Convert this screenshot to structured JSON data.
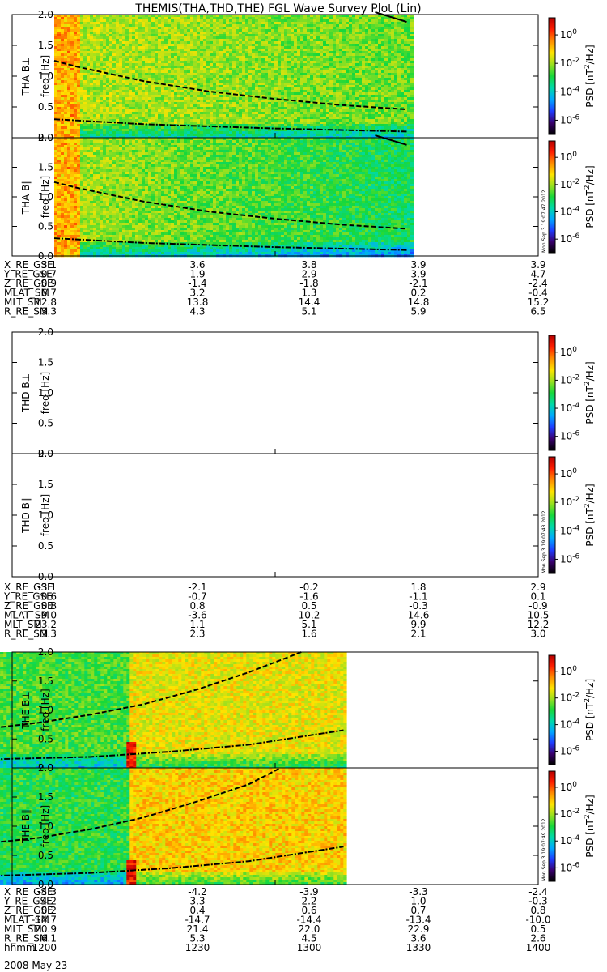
{
  "chart_data": {
    "type": "heatmap",
    "title": "THEMIS(THA,THD,THE) FGL Wave Survey Plot (Lin)",
    "date": "2008 May 23",
    "colorbar": {
      "label": "PSD [nT²/Hz]",
      "label_base": "PSD [nT",
      "label_sup": "2",
      "label_tail": "/Hz]",
      "scale": "log",
      "ticks": [
        {
          "base": "10",
          "exp": "0",
          "value": 1
        },
        {
          "base": "10",
          "exp": "-2",
          "value": 0.01
        },
        {
          "base": "10",
          "exp": "-4",
          "value": 0.0001
        },
        {
          "base": "10",
          "exp": "-6",
          "value": 1e-06
        }
      ],
      "colors": [
        "#000000",
        "#3a006f",
        "#1f3cff",
        "#00a8ff",
        "#00d9a8",
        "#17d83a",
        "#9be01f",
        "#ffe400",
        "#ff8c00",
        "#ff1d00",
        "#b50000"
      ]
    },
    "stamps": {
      "tha": "Mon Sep  3 19:07:47 2012",
      "thd": "Mon Sep  3 19:07:48 2012",
      "the": "Mon Sep  3 19:07:49 2012"
    },
    "yaxis": {
      "label": "freq [Hz]",
      "ylim": [
        0,
        2.0
      ],
      "ticks": [
        "0.0",
        "0.5",
        "1.0",
        "1.5",
        "2.0"
      ]
    },
    "panels": [
      {
        "id": "tha_perp",
        "probe": "THA",
        "component": "B⊥",
        "ylabel": "THA B⊥",
        "data_start": 1216,
        "data_end": 1352,
        "bright_band": [
          1216,
          1225
        ],
        "level_early": 6.3,
        "level_late": 5.6,
        "level_jump": null,
        "upper_curve": [
          [
            1216,
            1.25
          ],
          [
            1225,
            1.15
          ],
          [
            1250,
            0.92
          ],
          [
            1275,
            0.75
          ],
          [
            1300,
            0.63
          ],
          [
            1325,
            0.53
          ],
          [
            1350,
            0.46
          ]
        ],
        "lower_curve": [
          [
            1216,
            0.3
          ],
          [
            1250,
            0.22
          ],
          [
            1300,
            0.15
          ],
          [
            1350,
            0.1
          ]
        ],
        "top_curve": [
          [
            1338,
            2.04
          ],
          [
            1350,
            1.88
          ]
        ]
      },
      {
        "id": "tha_par",
        "probe": "THA",
        "component": "B∥",
        "ylabel": "THA B∥",
        "data_start": 1216,
        "data_end": 1352,
        "bright_band": [
          1216,
          1225
        ],
        "level_early": 6.2,
        "level_late": 4.7,
        "level_jump": null,
        "upper_curve": [
          [
            1216,
            1.25
          ],
          [
            1225,
            1.15
          ],
          [
            1250,
            0.92
          ],
          [
            1275,
            0.75
          ],
          [
            1300,
            0.63
          ],
          [
            1325,
            0.53
          ],
          [
            1350,
            0.46
          ]
        ],
        "lower_curve": [
          [
            1216,
            0.3
          ],
          [
            1250,
            0.22
          ],
          [
            1300,
            0.15
          ],
          [
            1350,
            0.1
          ]
        ],
        "top_curve": [
          [
            1338,
            2.04
          ],
          [
            1350,
            1.88
          ]
        ]
      },
      {
        "id": "thd_perp",
        "probe": "THD",
        "component": "B⊥",
        "ylabel": "THD B⊥",
        "data_start": null,
        "data_end": null,
        "bright_band": null,
        "level_early": null,
        "level_late": null,
        "level_jump": null,
        "upper_curve": [],
        "lower_curve": [],
        "top_curve": []
      },
      {
        "id": "thd_par",
        "probe": "THD",
        "component": "B∥",
        "ylabel": "THD B∥",
        "data_start": null,
        "data_end": null,
        "bright_band": null,
        "level_early": null,
        "level_late": null,
        "level_jump": null,
        "upper_curve": [],
        "lower_curve": [],
        "top_curve": []
      },
      {
        "id": "the_perp",
        "probe": "THE",
        "component": "B⊥",
        "ylabel": "THE B⊥",
        "data_start": 1193,
        "data_end": 1326,
        "bright_band": null,
        "level_early": 5.3,
        "level_late": 6.8,
        "level_jump": 1244,
        "upper_curve": [
          [
            1193,
            0.69
          ],
          [
            1210,
            0.78
          ],
          [
            1230,
            0.92
          ],
          [
            1250,
            1.1
          ],
          [
            1270,
            1.35
          ],
          [
            1290,
            1.65
          ],
          [
            1310,
            2.0
          ]
        ],
        "lower_curve": [
          [
            1193,
            0.15
          ],
          [
            1230,
            0.19
          ],
          [
            1260,
            0.28
          ],
          [
            1290,
            0.4
          ],
          [
            1326,
            0.65
          ]
        ],
        "top_curve": []
      },
      {
        "id": "the_par",
        "probe": "THE",
        "component": "B∥",
        "ylabel": "THE B∥",
        "data_start": 1193,
        "data_end": 1326,
        "bright_band": null,
        "level_early": 5.0,
        "level_late": 7.2,
        "level_jump": 1244,
        "upper_curve": [
          [
            1193,
            0.72
          ],
          [
            1210,
            0.8
          ],
          [
            1230,
            0.95
          ],
          [
            1250,
            1.15
          ],
          [
            1270,
            1.42
          ],
          [
            1290,
            1.72
          ],
          [
            1302,
            2.0
          ]
        ],
        "lower_curve": [
          [
            1193,
            0.15
          ],
          [
            1230,
            0.2
          ],
          [
            1260,
            0.28
          ],
          [
            1290,
            0.4
          ],
          [
            1326,
            0.65
          ]
        ],
        "top_curve": []
      }
    ],
    "ephemeris": [
      {
        "probe": "THA",
        "rows": [
          {
            "name": "X_RE_GSE",
            "values": [
              "3.1",
              "3.6",
              "3.8",
              "3.9",
              "3.9"
            ]
          },
          {
            "name": "Y_RE_GSE",
            "values": [
              "0.7",
              "1.9",
              "2.9",
              "3.9",
              "4.7"
            ]
          },
          {
            "name": "Z_RE_GSE",
            "values": [
              "-0.9",
              "-1.4",
              "-1.8",
              "-2.1",
              "-2.4"
            ]
          },
          {
            "name": "MLAT_SM",
            "values": [
              "6.7",
              "3.2",
              "1.3",
              "0.2",
              "-0.4"
            ]
          },
          {
            "name": "MLT_SM",
            "values": [
              "12.8",
              "13.8",
              "14.4",
              "14.8",
              "15.2"
            ]
          },
          {
            "name": "R_RE_SM",
            "values": [
              "3.3",
              "4.3",
              "5.1",
              "5.9",
              "6.5"
            ]
          }
        ]
      },
      {
        "probe": "THD",
        "rows": [
          {
            "name": "X_RE_GSE",
            "values": [
              "-3.1",
              "-2.1",
              "-0.2",
              "1.8",
              "2.9"
            ]
          },
          {
            "name": "Y_RE_GSE",
            "values": [
              "0.6",
              "-0.7",
              "-1.6",
              "-1.1",
              "0.1"
            ]
          },
          {
            "name": "Z_RE_GSE",
            "values": [
              "0.8",
              "0.8",
              "0.5",
              "-0.3",
              "-0.9"
            ]
          },
          {
            "name": "MLAT_SM",
            "values": [
              "-9.0",
              "-3.6",
              "10.2",
              "14.6",
              "10.5"
            ]
          },
          {
            "name": "MLT_SM",
            "values": [
              "23.2",
              "1.1",
              "5.1",
              "9.9",
              "12.2"
            ]
          },
          {
            "name": "R_RE_SM",
            "values": [
              "3.3",
              "2.3",
              "1.6",
              "2.1",
              "3.0"
            ]
          }
        ]
      },
      {
        "probe": "THE",
        "rows": [
          {
            "name": "X_RE_GSE",
            "values": [
              "-4.3",
              "-4.2",
              "-3.9",
              "-3.3",
              "-2.4"
            ]
          },
          {
            "name": "Y_RE_GSE",
            "values": [
              "4.2",
              "3.3",
              "2.2",
              "1.0",
              "-0.3"
            ]
          },
          {
            "name": "Z_RE_GSE",
            "values": [
              "0.2",
              "0.4",
              "0.6",
              "0.7",
              "0.8"
            ]
          },
          {
            "name": "MLAT_SM",
            "values": [
              "-14.7",
              "-14.7",
              "-14.4",
              "-13.4",
              "-10.0"
            ]
          },
          {
            "name": "MLT_SM",
            "values": [
              "20.9",
              "21.4",
              "22.0",
              "22.9",
              "0.5"
            ]
          },
          {
            "name": "R_RE_SM",
            "values": [
              "6.1",
              "5.3",
              "4.5",
              "3.6",
              "2.6"
            ]
          },
          {
            "name": "hhmm",
            "values": [
              "1200",
              "1230",
              "1300",
              "1330",
              "1400"
            ]
          }
        ]
      }
    ],
    "time_range": [
      1200,
      1400
    ]
  }
}
